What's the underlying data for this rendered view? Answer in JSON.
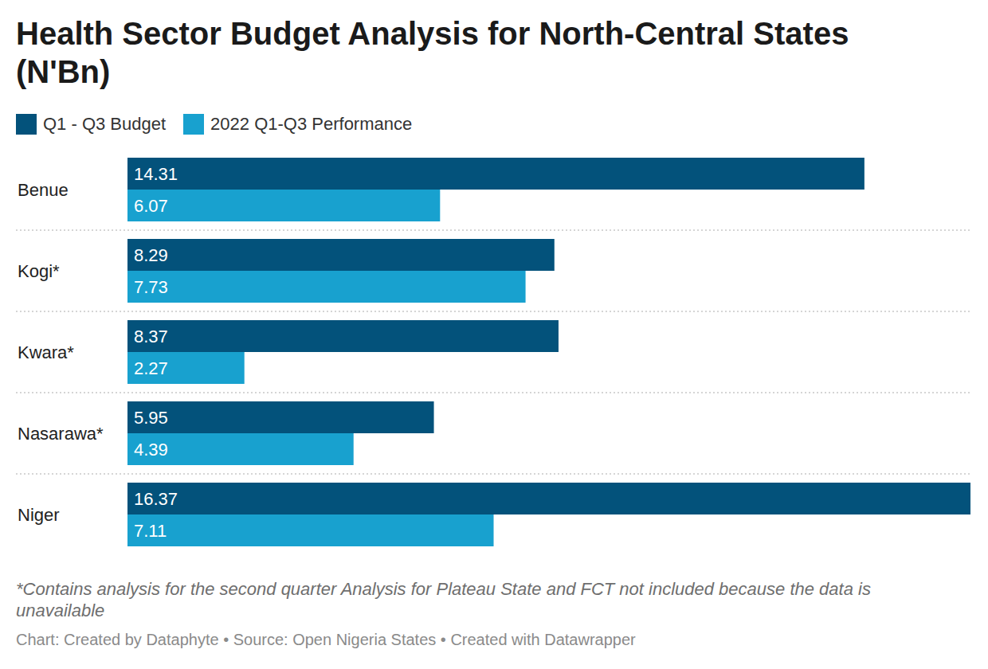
{
  "chart_data": {
    "type": "bar",
    "orientation": "horizontal",
    "title": "Health Sector Budget Analysis for North-Central States (N'Bn)",
    "categories": [
      "Benue",
      "Kogi*",
      "Kwara*",
      "Nasarawa*",
      "Niger"
    ],
    "series": [
      {
        "name": "Q1 - Q3 Budget",
        "color": "#03527b",
        "values": [
          14.31,
          8.29,
          8.37,
          5.95,
          16.37
        ]
      },
      {
        "name": "2022 Q1-Q3 Performance",
        "color": "#18a1cf",
        "values": [
          6.07,
          7.73,
          2.27,
          4.39,
          7.11
        ]
      }
    ],
    "xlim": [
      0,
      16.37
    ],
    "data_labels": true,
    "tick_labels": "y",
    "legend": "top-left",
    "grid": false,
    "notes": "*Contains analysis for the second quarter Analysis for Plateau State and FCT not included because the data is unavailable",
    "source": "Chart: Created by Dataphyte • Source: Open Nigeria States • Created with Datawrapper"
  }
}
